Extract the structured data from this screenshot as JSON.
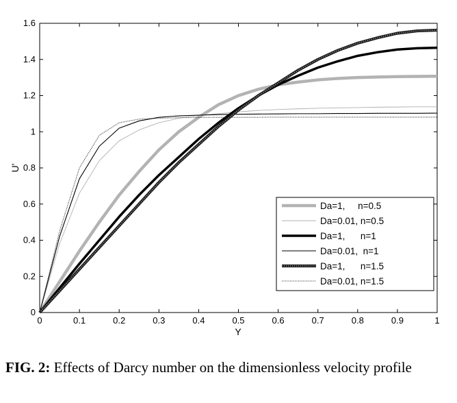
{
  "caption": {
    "label": "FIG. 2:",
    "text": " Effects of Darcy number on the dimensionless velocity profile"
  },
  "chart_data": {
    "type": "line",
    "xlabel": "Y",
    "ylabel": "U'",
    "xlim": [
      0,
      1
    ],
    "ylim": [
      0,
      1.6
    ],
    "xticks": [
      0,
      0.1,
      0.2,
      0.3,
      0.4,
      0.5,
      0.6,
      0.7,
      0.8,
      0.9,
      1
    ],
    "xtick_labels": [
      "0",
      "0.1",
      "0.2",
      "0.3",
      "0.4",
      "0.5",
      "0.6",
      "0.7",
      "0.8",
      "0.9",
      "1"
    ],
    "yticks": [
      0,
      0.2,
      0.4,
      0.6,
      0.8,
      1,
      1.2,
      1.4,
      1.6
    ],
    "ytick_labels": [
      "0",
      "0.2",
      "0.4",
      "0.6",
      "0.8",
      "1",
      "1.2",
      "1.4",
      "1.6"
    ],
    "grid": false,
    "legend_position": "lower-right",
    "x": [
      0,
      0.05,
      0.1,
      0.15,
      0.2,
      0.25,
      0.3,
      0.35,
      0.4,
      0.45,
      0.5,
      0.55,
      0.6,
      0.65,
      0.7,
      0.75,
      0.8,
      0.85,
      0.9,
      0.95,
      1
    ],
    "series": [
      {
        "name": "Da=1,     n=0.5",
        "color": "#b3b3b3",
        "style": "thick-gray",
        "values": [
          0,
          0.17,
          0.34,
          0.5,
          0.65,
          0.78,
          0.9,
          1.0,
          1.08,
          1.15,
          1.2,
          1.235,
          1.26,
          1.275,
          1.287,
          1.295,
          1.3,
          1.303,
          1.305,
          1.306,
          1.307
        ]
      },
      {
        "name": "Da=0.01, n=0.5",
        "color": "#aaaaaa",
        "style": "thin-gray",
        "values": [
          0,
          0.38,
          0.66,
          0.84,
          0.95,
          1.01,
          1.05,
          1.075,
          1.09,
          1.1,
          1.11,
          1.118,
          1.123,
          1.127,
          1.13,
          1.132,
          1.134,
          1.136,
          1.137,
          1.138,
          1.138
        ]
      },
      {
        "name": "Da=1,      n=1",
        "color": "#000000",
        "style": "thick-black",
        "values": [
          0,
          0.135,
          0.27,
          0.4,
          0.53,
          0.65,
          0.76,
          0.86,
          0.96,
          1.05,
          1.13,
          1.2,
          1.26,
          1.31,
          1.355,
          1.39,
          1.42,
          1.44,
          1.455,
          1.462,
          1.465
        ]
      },
      {
        "name": "Da=0.01,  n=1",
        "color": "#000000",
        "style": "thin-black",
        "values": [
          0,
          0.42,
          0.74,
          0.92,
          1.02,
          1.06,
          1.08,
          1.088,
          1.092,
          1.095,
          1.097,
          1.098,
          1.099,
          1.1,
          1.1,
          1.101,
          1.101,
          1.102,
          1.102,
          1.102,
          1.103
        ]
      },
      {
        "name": "Da=1,      n=1.5",
        "color": "#404040",
        "style": "thick-dashed",
        "values": [
          0,
          0.12,
          0.24,
          0.36,
          0.48,
          0.6,
          0.72,
          0.83,
          0.93,
          1.03,
          1.12,
          1.2,
          1.27,
          1.34,
          1.4,
          1.45,
          1.49,
          1.52,
          1.545,
          1.558,
          1.562
        ]
      },
      {
        "name": "Da=0.01, n=1.5",
        "color": "#202020",
        "style": "thin-dotted",
        "values": [
          0,
          0.45,
          0.8,
          0.98,
          1.05,
          1.07,
          1.075,
          1.078,
          1.079,
          1.08,
          1.08,
          1.08,
          1.081,
          1.081,
          1.081,
          1.081,
          1.081,
          1.081,
          1.081,
          1.081,
          1.081
        ]
      }
    ]
  }
}
